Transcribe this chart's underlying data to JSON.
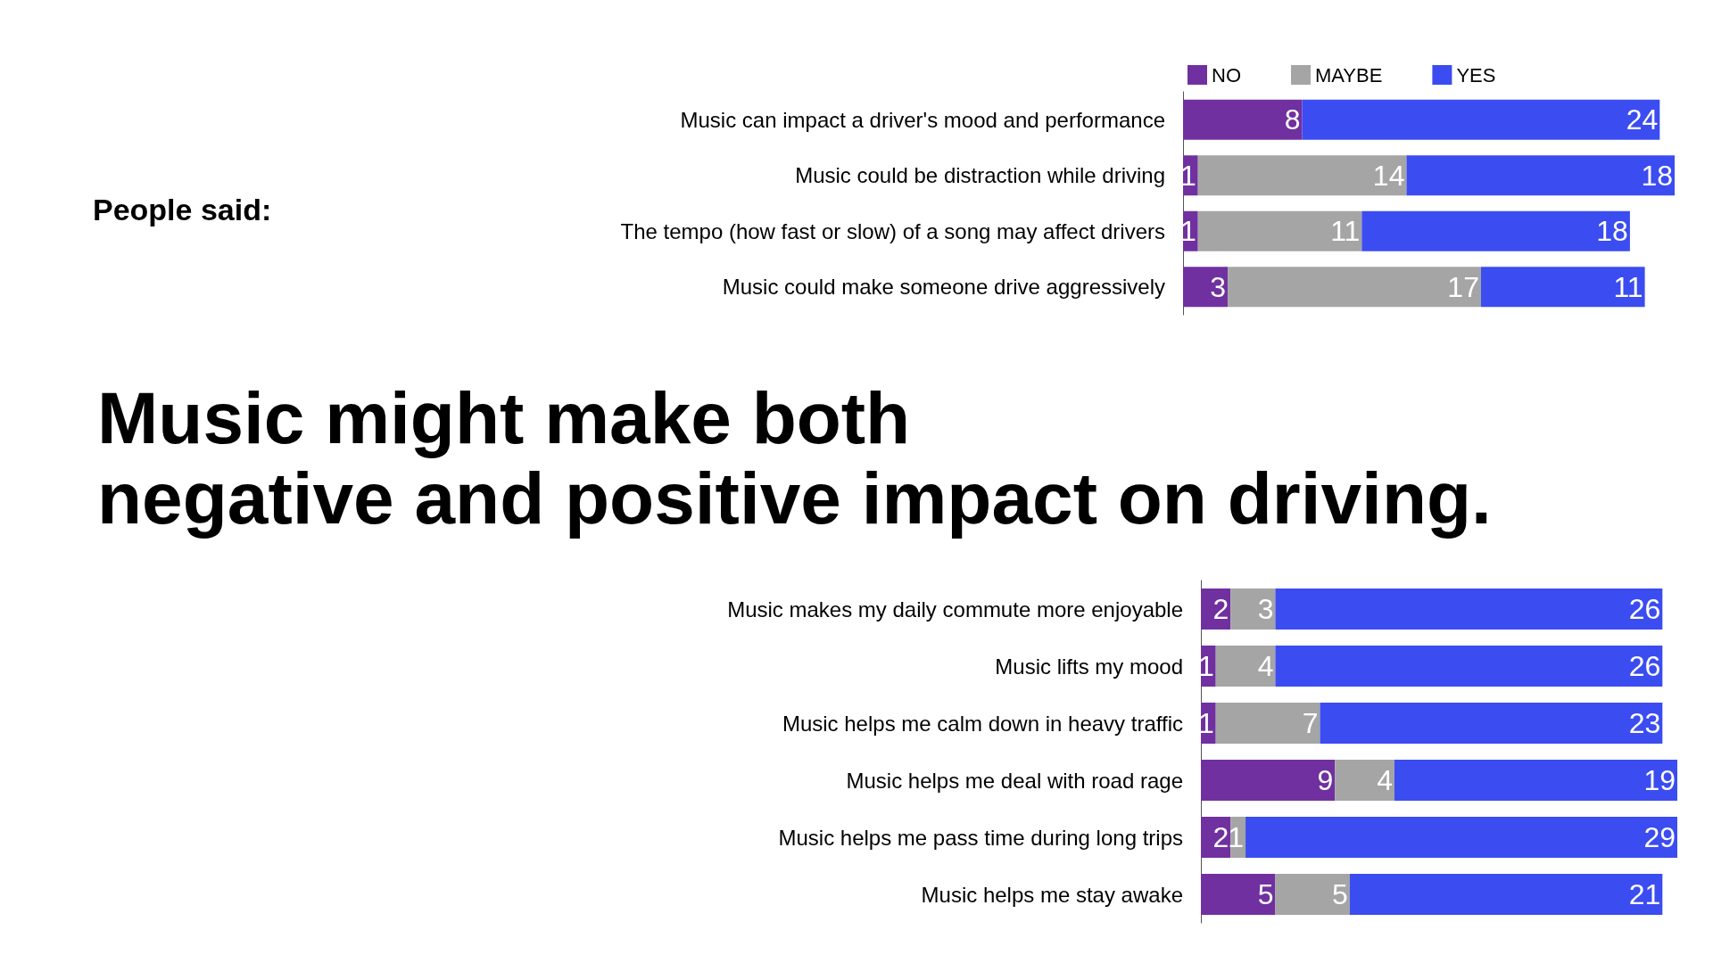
{
  "chart_data": [
    {
      "type": "bar",
      "orientation": "horizontal",
      "stacked": true,
      "annotations": [
        "People said:"
      ],
      "categories": [
        "Music can impact a driver's mood and performance",
        "Music could be distraction while driving",
        "The tempo (how fast or slow) of a song may affect drivers",
        "Music could make someone drive aggressively"
      ],
      "series": [
        {
          "name": "NO",
          "color": "#7030a0",
          "values": [
            8,
            1,
            1,
            3
          ]
        },
        {
          "name": "MAYBE",
          "color": "#a5a5a5",
          "values": [
            null,
            14,
            11,
            17
          ]
        },
        {
          "name": "YES",
          "color": "#3b4cf0",
          "values": [
            24,
            18,
            18,
            11
          ]
        }
      ],
      "tick_labels": "y",
      "data_labels": true,
      "legend": "top",
      "grid": false
    },
    {
      "type": "bar",
      "orientation": "horizontal",
      "stacked": true,
      "title": "Music might make both\nnegative and positive impact on driving.",
      "categories": [
        "Music makes my daily commute more enjoyable",
        "Music lifts my mood",
        "Music helps me calm down in heavy traffic",
        "Music helps me deal with road rage",
        "Music helps me pass time during long trips",
        "Music helps me stay awake"
      ],
      "series": [
        {
          "color": "#7030a0",
          "values": [
            2,
            1,
            1,
            9,
            2,
            5
          ]
        },
        {
          "color": "#a5a5a5",
          "values": [
            3,
            4,
            7,
            4,
            1,
            5
          ]
        },
        {
          "color": "#3b4cf0",
          "values": [
            26,
            26,
            23,
            19,
            29,
            21
          ]
        }
      ],
      "tick_labels": "y",
      "data_labels": true,
      "legend": false,
      "grid": false
    }
  ]
}
